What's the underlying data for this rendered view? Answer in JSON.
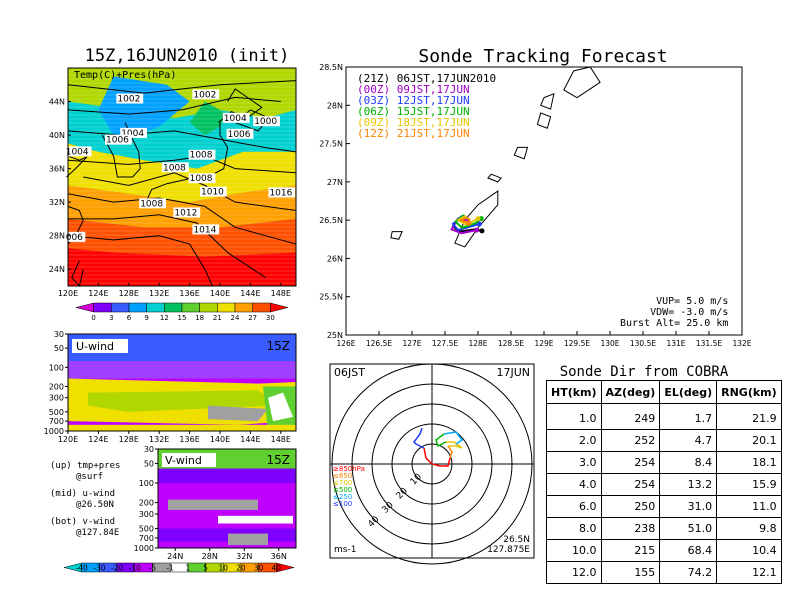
{
  "map_panel": {
    "title": "15Z,16JUN2010 (init)",
    "label": "Temp(C)+Pres(hPa)",
    "lat_ticks": [
      "44N",
      "40N",
      "36N",
      "32N",
      "28N",
      "24N"
    ],
    "lon_ticks": [
      "120E",
      "124E",
      "128E",
      "132E",
      "136E",
      "140E",
      "144E",
      "148E"
    ],
    "pressure_labels": [
      {
        "text": "1002",
        "lon": 126.5,
        "lat": 44.0
      },
      {
        "text": "1002",
        "lon": 136.5,
        "lat": 44.5
      },
      {
        "text": "1000",
        "lon": 144.5,
        "lat": 41.3
      },
      {
        "text": "1004",
        "lon": 140.5,
        "lat": 41.7
      },
      {
        "text": "1004",
        "lon": 127.0,
        "lat": 39.9
      },
      {
        "text": "1006",
        "lon": 125.0,
        "lat": 39.1
      },
      {
        "text": "1006",
        "lon": 141.0,
        "lat": 39.8
      },
      {
        "text": "1004",
        "lon": 119.7,
        "lat": 37.7
      },
      {
        "text": "1008",
        "lon": 136.0,
        "lat": 37.3
      },
      {
        "text": "1008",
        "lon": 132.5,
        "lat": 35.8
      },
      {
        "text": "1008",
        "lon": 136.0,
        "lat": 34.5
      },
      {
        "text": "1010",
        "lon": 137.5,
        "lat": 32.9
      },
      {
        "text": "1016",
        "lon": 146.5,
        "lat": 32.8
      },
      {
        "text": "1008",
        "lon": 129.5,
        "lat": 31.5
      },
      {
        "text": "1012",
        "lon": 134.0,
        "lat": 30.4
      },
      {
        "text": "1014",
        "lon": 136.5,
        "lat": 28.4
      },
      {
        "text": "006",
        "lon": 119.7,
        "lat": 27.5
      }
    ],
    "colorbar_labels": [
      "0",
      "3",
      "6",
      "9",
      "12",
      "15",
      "18",
      "21",
      "24",
      "27",
      "30"
    ]
  },
  "u_panel": {
    "label": "U-wind",
    "time": "15Z",
    "p_ticks": [
      "30",
      "50",
      "100",
      "200",
      "300",
      "500",
      "700",
      "1000"
    ],
    "lon_ticks": [
      "120E",
      "124E",
      "128E",
      "132E",
      "136E",
      "140E",
      "144E",
      "148E"
    ]
  },
  "v_panel": {
    "label": "V-wind",
    "time": "15Z",
    "p_ticks": [
      "30",
      "50",
      "100",
      "200",
      "300",
      "500",
      "700",
      "1000"
    ],
    "lat_ticks": [
      "24N",
      "28N",
      "32N",
      "36N"
    ]
  },
  "notes": {
    "up": "(up) tmp+pres",
    "up2": "@surf",
    "mid": "(mid) u-wind",
    "mid2": "@26.50N",
    "bot": "(bot) v-wind",
    "bot2": "@127.84E"
  },
  "wind_colorbar_labels": [
    "-40",
    "-30",
    "-20",
    "-10",
    "-5",
    "-1",
    "1",
    "5",
    "10",
    "20",
    "30",
    "40"
  ],
  "track_panel": {
    "title": "Sonde Tracking Forecast",
    "lat_ticks": [
      "28.5N",
      "28N",
      "27.5N",
      "27N",
      "26.5N",
      "26N",
      "25.5N",
      "25N"
    ],
    "lon_ticks": [
      "126E",
      "126.5E",
      "127E",
      "127.5E",
      "128E",
      "128.5E",
      "129E",
      "129.5E",
      "130E",
      "130.5E",
      "131E",
      "131.5E",
      "132E"
    ],
    "legend": [
      {
        "text": "(21Z)  06JST,17JUN2010",
        "color": "#000000"
      },
      {
        "text": "(00Z)  09JST,17JUN",
        "color": "#a000c8"
      },
      {
        "text": "(03Z)  12JST,17JUN",
        "color": "#1e3cff"
      },
      {
        "text": "(06Z)  15JST,17JUN",
        "color": "#00b400"
      },
      {
        "text": "(09Z)  18JST,17JUN",
        "color": "#e6c800"
      },
      {
        "text": "(12Z)  21JST,17JUN",
        "color": "#ff8200"
      }
    ],
    "params": [
      "VUP=  5.0 m/s",
      "VDW= -3.0 m/s",
      "Burst Alt= 25.0 km"
    ]
  },
  "polar_panel": {
    "left_label": "06JST",
    "right_label": "17JUN",
    "coord_lat": "26.5N",
    "coord_lon": "127.875E",
    "unit": "ms-1",
    "ring_labels": [
      "10",
      "20",
      "30",
      "40"
    ],
    "levels": [
      {
        "text": "≥850hPa",
        "color": "#ff0000"
      },
      {
        "text": "≤850",
        "color": "#ff8200"
      },
      {
        "text": "≤700",
        "color": "#e6c800"
      },
      {
        "text": "≤500",
        "color": "#00b400"
      },
      {
        "text": "≤250",
        "color": "#00aaff"
      },
      {
        "text": "≤100",
        "color": "#1e3cff"
      }
    ]
  },
  "cobra_table": {
    "title": "Sonde Dir from COBRA",
    "headers": [
      "HT(km)",
      "AZ(deg)",
      "EL(deg)",
      "RNG(km)"
    ],
    "rows": [
      [
        "1.0",
        "249",
        "1.7",
        "21.9"
      ],
      [
        "2.0",
        "252",
        "4.7",
        "20.1"
      ],
      [
        "3.0",
        "254",
        "8.4",
        "18.1"
      ],
      [
        "4.0",
        "254",
        "13.2",
        "15.9"
      ],
      [
        "6.0",
        "250",
        "31.0",
        "11.0"
      ],
      [
        "8.0",
        "238",
        "51.0",
        "9.8"
      ],
      [
        "10.0",
        "215",
        "68.4",
        "10.4"
      ],
      [
        "12.0",
        "155",
        "74.2",
        "12.1"
      ]
    ]
  },
  "chart_data": [
    {
      "type": "heatmap",
      "title": "15Z,16JUN2010 (init)",
      "field": "Temp(C)+Pres(hPa)",
      "xlim": [
        120,
        150
      ],
      "ylim": [
        22,
        48
      ],
      "color_levels": [
        0,
        3,
        6,
        9,
        12,
        15,
        18,
        21,
        24,
        27,
        30
      ],
      "colors": [
        "#d400d4",
        "#8000ff",
        "#3a5bff",
        "#00a0ff",
        "#00d0d0",
        "#00c060",
        "#60d030",
        "#b0d800",
        "#f0e000",
        "#ffa000",
        "#ff5000",
        "#ff0000"
      ]
    },
    {
      "type": "heatmap",
      "field": "U-wind",
      "time": "15Z",
      "xlim": [
        120,
        150
      ],
      "p_levels_hPa": [
        30,
        50,
        100,
        200,
        300,
        500,
        700,
        1000
      ]
    },
    {
      "type": "heatmap",
      "field": "V-wind",
      "time": "15Z",
      "xlim": [
        22,
        38
      ],
      "p_levels_hPa": [
        30,
        50,
        100,
        200,
        300,
        500,
        700,
        1000
      ],
      "color_levels": [
        -40,
        -30,
        -20,
        -10,
        -5,
        -1,
        1,
        5,
        10,
        20,
        30,
        40
      ],
      "colors": [
        "#00d0d0",
        "#00a0ff",
        "#3a5bff",
        "#8000ff",
        "#c000ff",
        "#a0a0a0",
        "#ffffff",
        "#60d030",
        "#b0d800",
        "#f0e000",
        "#ffa000",
        "#ff5000",
        "#ff0000"
      ]
    },
    {
      "type": "line",
      "title": "Sonde Tracking Forecast",
      "xlim": [
        126,
        132
      ],
      "ylim": [
        25,
        28.5
      ],
      "series": [
        {
          "name": "(21Z)  06JST,17JUN2010",
          "color": "#000000",
          "points": [
            [
              127.88,
              26.5
            ],
            [
              127.7,
              26.52
            ],
            [
              127.62,
              26.42
            ],
            [
              127.72,
              26.35
            ],
            [
              127.95,
              26.38
            ],
            [
              128.06,
              26.36
            ]
          ]
        },
        {
          "name": "(00Z)  09JST,17JUN",
          "color": "#a000c8",
          "points": [
            [
              127.88,
              26.5
            ],
            [
              127.68,
              26.5
            ],
            [
              127.6,
              26.38
            ],
            [
              127.75,
              26.33
            ],
            [
              127.98,
              26.37
            ]
          ]
        },
        {
          "name": "(03Z)  12JST,17JUN",
          "color": "#1e3cff",
          "points": [
            [
              127.88,
              26.5
            ],
            [
              127.75,
              26.55
            ],
            [
              127.62,
              26.45
            ],
            [
              127.7,
              26.37
            ],
            [
              127.9,
              26.42
            ],
            [
              128.02,
              26.45
            ]
          ]
        },
        {
          "name": "(06Z)  15JST,17JUN",
          "color": "#00b400",
          "points": [
            [
              127.88,
              26.5
            ],
            [
              127.78,
              26.56
            ],
            [
              127.66,
              26.48
            ],
            [
              127.76,
              26.4
            ],
            [
              127.96,
              26.46
            ],
            [
              128.05,
              26.52
            ]
          ]
        },
        {
          "name": "(09Z)  18JST,17JUN",
          "color": "#e6c800",
          "points": [
            [
              127.88,
              26.5
            ],
            [
              127.8,
              26.55
            ],
            [
              127.7,
              26.5
            ],
            [
              127.82,
              26.44
            ],
            [
              128.0,
              26.52
            ]
          ]
        },
        {
          "name": "(12Z)  21JST,17JUN",
          "color": "#ff8200",
          "points": [
            [
              127.88,
              26.5
            ],
            [
              127.82,
              26.53
            ],
            [
              127.74,
              26.5
            ],
            [
              127.86,
              26.46
            ]
          ]
        }
      ]
    },
    {
      "type": "line",
      "title": "06JST 17JUN",
      "max_range": 50,
      "rings": [
        10,
        20,
        30,
        40
      ],
      "hodograph": [
        {
          "color": "#ff0000",
          "points": [
            [
              -4,
              -8
            ],
            [
              -3,
              -3
            ],
            [
              0,
              0
            ],
            [
              4,
              1
            ],
            [
              8,
              1
            ],
            [
              9,
              -3
            ]
          ]
        },
        {
          "color": "#ff8200",
          "points": [
            [
              9,
              -3
            ],
            [
              10,
              -6
            ],
            [
              8,
              -9
            ]
          ]
        },
        {
          "color": "#e6c800",
          "points": [
            [
              8,
              -9
            ],
            [
              12,
              -9
            ],
            [
              15,
              -8
            ],
            [
              11,
              -11
            ],
            [
              7,
              -11
            ]
          ]
        },
        {
          "color": "#00b400",
          "points": [
            [
              7,
              -11
            ],
            [
              3,
              -9
            ],
            [
              2,
              -12
            ],
            [
              6,
              -15
            ]
          ]
        },
        {
          "color": "#00aaff",
          "points": [
            [
              6,
              -15
            ],
            [
              12,
              -16
            ],
            [
              15,
              -12
            ],
            [
              12,
              -10
            ]
          ]
        },
        {
          "color": "#1e3cff",
          "points": [
            [
              -4,
              -8
            ],
            [
              -8,
              -10
            ],
            [
              -9,
              -11
            ],
            [
              -6,
              -15
            ],
            [
              -5,
              -18
            ]
          ]
        }
      ]
    },
    {
      "type": "table",
      "title": "Sonde Dir from COBRA",
      "columns": [
        "HT(km)",
        "AZ(deg)",
        "EL(deg)",
        "RNG(km)"
      ],
      "rows": [
        [
          1.0,
          249,
          1.7,
          21.9
        ],
        [
          2.0,
          252,
          4.7,
          20.1
        ],
        [
          3.0,
          254,
          8.4,
          18.1
        ],
        [
          4.0,
          254,
          13.2,
          15.9
        ],
        [
          6.0,
          250,
          31.0,
          11.0
        ],
        [
          8.0,
          238,
          51.0,
          9.8
        ],
        [
          10.0,
          215,
          68.4,
          10.4
        ],
        [
          12.0,
          155,
          74.2,
          12.1
        ]
      ]
    }
  ]
}
